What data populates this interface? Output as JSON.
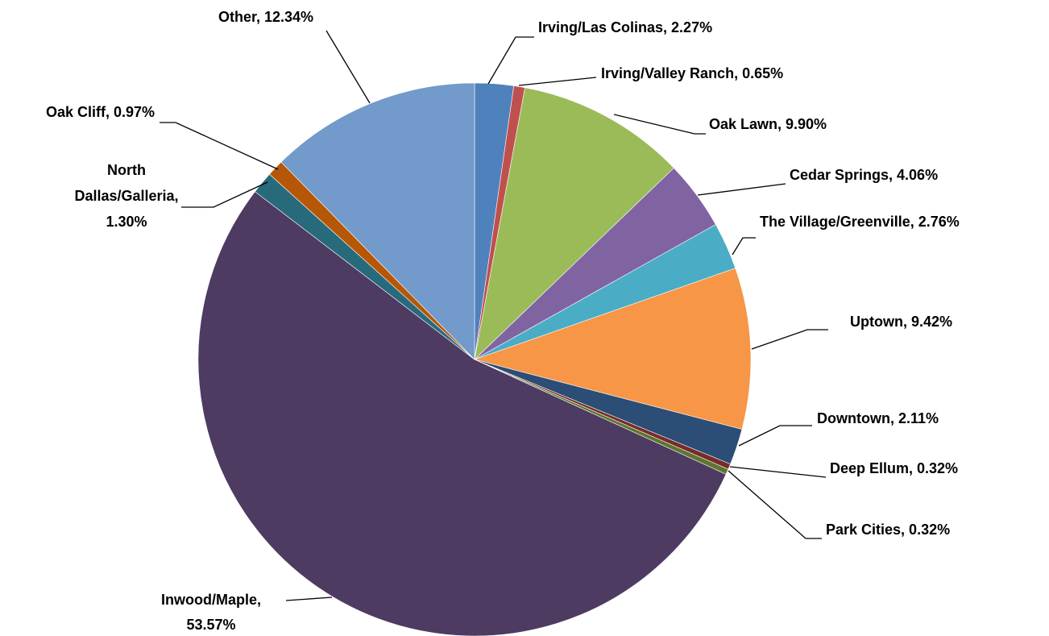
{
  "chart_data": {
    "type": "pie",
    "categories": [
      "Irving/Las Colinas",
      "Irving/Valley Ranch",
      "Oak Lawn",
      "Cedar Springs",
      "The Village/Greenville",
      "Uptown",
      "Downtown",
      "Deep Ellum",
      "Park Cities",
      "Inwood/Maple",
      "North Dallas/Galleria",
      "Oak Cliff",
      "Other"
    ],
    "values": [
      2.27,
      0.65,
      9.9,
      4.06,
      2.76,
      9.42,
      2.11,
      0.32,
      0.32,
      53.57,
      1.3,
      0.97,
      12.34
    ],
    "value_labels": [
      "Irving/Las Colinas, 2.27%",
      "Irving/Valley Ranch, 0.65%",
      "Oak Lawn, 9.90%",
      "Cedar Springs, 4.06%",
      "The Village/Greenville, 2.76%",
      "Uptown, 9.42%",
      "Downtown, 2.11%",
      "Deep Ellum, 0.32%",
      "Park Cities, 0.32%",
      "Inwood/Maple, 53.57%",
      "North Dallas/Galleria, 1.30%",
      "Oak Cliff, 0.97%",
      "Other, 12.34%"
    ],
    "colors": [
      "#4f81bd",
      "#c0504d",
      "#9bbb59",
      "#8064a2",
      "#4bacc6",
      "#f79646",
      "#2c4d75",
      "#772c2a",
      "#5f7530",
      "#4d3b62",
      "#276a7c",
      "#b65708",
      "#729aca"
    ]
  }
}
